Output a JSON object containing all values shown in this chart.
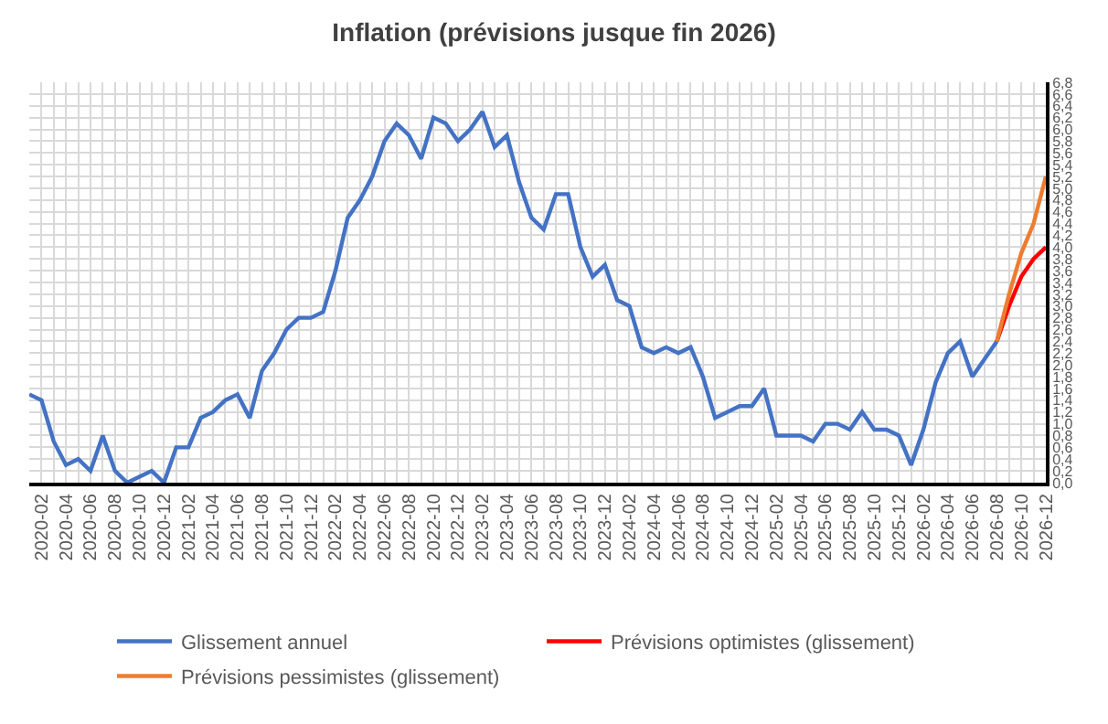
{
  "chart_data": {
    "type": "line",
    "title": "Inflation (prévisions jusque fin 2026)",
    "categories": [
      null,
      "2020-02",
      null,
      "2020-04",
      null,
      "2020-06",
      null,
      "2020-08",
      null,
      "2020-10",
      null,
      "2020-12",
      null,
      "2021-02",
      null,
      "2021-04",
      null,
      "2021-06",
      null,
      "2021-08",
      null,
      "2021-10",
      null,
      "2021-12",
      null,
      "2022-02",
      null,
      "2022-04",
      null,
      "2022-06",
      null,
      "2022-08",
      null,
      "2022-10",
      null,
      "2022-12",
      null,
      "2023-02",
      null,
      "2023-04",
      null,
      "2023-06",
      null,
      "2023-08",
      null,
      "2023-10",
      null,
      "2023-12",
      null,
      "2024-02",
      null,
      "2024-04",
      null,
      "2024-06",
      null,
      "2024-08",
      null,
      "2024-10",
      null,
      "2024-12",
      null,
      "2025-02",
      null,
      "2025-04",
      null,
      "2025-06",
      null,
      "2025-08",
      null,
      "2025-10",
      null,
      "2025-12",
      null,
      "2026-02",
      null,
      "2026-04",
      null,
      "2026-06",
      null,
      "2026-08",
      null,
      "2026-10",
      null,
      "2026-12"
    ],
    "series": [
      {
        "name": "Glissement annuel",
        "color": "#4472c4",
        "values": [
          1.5,
          1.4,
          0.7,
          0.3,
          0.4,
          0.2,
          0.8,
          0.2,
          0.0,
          0.1,
          0.2,
          0.0,
          0.6,
          0.6,
          1.1,
          1.2,
          1.4,
          1.5,
          1.1,
          1.9,
          2.2,
          2.6,
          2.8,
          2.8,
          2.9,
          3.6,
          4.5,
          4.8,
          5.2,
          5.8,
          6.1,
          5.9,
          5.5,
          6.2,
          6.1,
          5.8,
          6.0,
          6.3,
          5.7,
          5.9,
          5.1,
          4.5,
          4.3,
          4.9,
          4.9,
          4.0,
          3.5,
          3.7,
          3.1,
          3.0,
          2.3,
          2.2,
          2.3,
          2.2,
          2.3,
          1.8,
          1.1,
          1.2,
          1.3,
          1.3,
          1.6,
          0.8,
          0.8,
          0.8,
          0.7,
          1.0,
          1.0,
          0.9,
          1.2,
          0.9,
          0.9,
          0.8,
          0.3,
          0.9,
          1.7,
          2.2,
          2.4,
          1.8,
          2.1,
          2.4,
          null,
          null,
          null,
          null
        ]
      },
      {
        "name": "Prévisions optimistes (glissement)",
        "color": "#ff0000",
        "values": [
          null,
          null,
          null,
          null,
          null,
          null,
          null,
          null,
          null,
          null,
          null,
          null,
          null,
          null,
          null,
          null,
          null,
          null,
          null,
          null,
          null,
          null,
          null,
          null,
          null,
          null,
          null,
          null,
          null,
          null,
          null,
          null,
          null,
          null,
          null,
          null,
          null,
          null,
          null,
          null,
          null,
          null,
          null,
          null,
          null,
          null,
          null,
          null,
          null,
          null,
          null,
          null,
          null,
          null,
          null,
          null,
          null,
          null,
          null,
          null,
          null,
          null,
          null,
          null,
          null,
          null,
          null,
          null,
          null,
          null,
          null,
          null,
          null,
          null,
          null,
          null,
          null,
          null,
          null,
          2.4,
          3.0,
          3.5,
          3.8,
          4.0
        ]
      },
      {
        "name": "Prévisions pessimistes (glissement)",
        "color": "#ed7d31",
        "values": [
          null,
          null,
          null,
          null,
          null,
          null,
          null,
          null,
          null,
          null,
          null,
          null,
          null,
          null,
          null,
          null,
          null,
          null,
          null,
          null,
          null,
          null,
          null,
          null,
          null,
          null,
          null,
          null,
          null,
          null,
          null,
          null,
          null,
          null,
          null,
          null,
          null,
          null,
          null,
          null,
          null,
          null,
          null,
          null,
          null,
          null,
          null,
          null,
          null,
          null,
          null,
          null,
          null,
          null,
          null,
          null,
          null,
          null,
          null,
          null,
          null,
          null,
          null,
          null,
          null,
          null,
          null,
          null,
          null,
          null,
          null,
          null,
          null,
          null,
          null,
          null,
          null,
          null,
          null,
          2.4,
          3.2,
          3.9,
          4.4,
          5.2
        ]
      }
    ],
    "ylim": [
      0,
      6.8
    ],
    "yticks": [
      {
        "value": 0,
        "label": "0,0"
      },
      {
        "value": 0.2,
        "label": "0,2"
      },
      {
        "value": 0.4,
        "label": "0,4"
      },
      {
        "value": 0.6,
        "label": "0,6"
      },
      {
        "value": 0.8,
        "label": "0,8"
      },
      {
        "value": 1.0,
        "label": "1,0"
      },
      {
        "value": 1.2,
        "label": "1,2"
      },
      {
        "value": 1.4,
        "label": "1,4"
      },
      {
        "value": 1.6,
        "label": "1,6"
      },
      {
        "value": 1.8,
        "label": "1,8"
      },
      {
        "value": 2.0,
        "label": "2,0"
      },
      {
        "value": 2.2,
        "label": "2,2"
      },
      {
        "value": 2.4,
        "label": "2,4"
      },
      {
        "value": 2.6,
        "label": "2,6"
      },
      {
        "value": 2.8,
        "label": "2,8"
      },
      {
        "value": 3.0,
        "label": "3,0"
      },
      {
        "value": 3.2,
        "label": "3,2"
      },
      {
        "value": 3.4,
        "label": "3,4"
      },
      {
        "value": 3.6,
        "label": "3,6"
      },
      {
        "value": 3.8,
        "label": "3,8"
      },
      {
        "value": 4.0,
        "label": "4,0"
      },
      {
        "value": 4.2,
        "label": "4,2"
      },
      {
        "value": 4.4,
        "label": "4,4"
      },
      {
        "value": 4.6,
        "label": "4,6"
      },
      {
        "value": 4.8,
        "label": "4,8"
      },
      {
        "value": 5.0,
        "label": "5,0"
      },
      {
        "value": 5.2,
        "label": "5,2"
      },
      {
        "value": 5.4,
        "label": "5,4"
      },
      {
        "value": 5.6,
        "label": "5,6"
      },
      {
        "value": 5.8,
        "label": "5,8"
      },
      {
        "value": 6.0,
        "label": "6,0"
      },
      {
        "value": 6.2,
        "label": "6,2"
      },
      {
        "value": 6.4,
        "label": "6,4"
      },
      {
        "value": 6.6,
        "label": "6,6"
      },
      {
        "value": 6.8,
        "label": "6,8"
      }
    ],
    "grid": true,
    "legend": "bottom",
    "marker": "none",
    "line_style": "solid"
  }
}
